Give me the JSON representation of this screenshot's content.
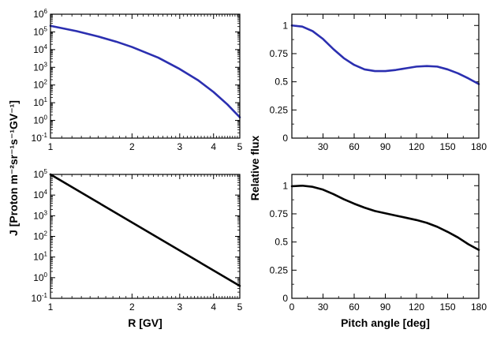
{
  "figure": {
    "shared_ylabel_left": "J [Proton m⁻²sr⁻¹s⁻¹GV⁻¹]",
    "shared_ylabel_right": "Relative flux"
  },
  "chart_data": [
    {
      "type": "line",
      "panel": "top-left",
      "xlabel": "",
      "ylabel": "J [Proton m⁻²sr⁻¹s⁻¹GV⁻¹]",
      "xscale": "log",
      "yscale": "log",
      "xlim": [
        1,
        5
      ],
      "ylim": [
        0.1,
        1000000
      ],
      "xticks": [
        1,
        2,
        3,
        4,
        5
      ],
      "xtick_labels": [
        "1",
        "2",
        "3",
        "4",
        "5"
      ],
      "yticks": [
        0.1,
        1,
        10,
        100,
        1000,
        10000,
        100000,
        1000000
      ],
      "ytick_labels": [
        [
          "10",
          "-1"
        ],
        [
          "10",
          "0"
        ],
        [
          "10",
          "1"
        ],
        [
          "10",
          "2"
        ],
        [
          "10",
          "3"
        ],
        [
          "10",
          "4"
        ],
        [
          "10",
          "5"
        ],
        [
          "10",
          "6"
        ]
      ],
      "series": [
        {
          "color": "#2b2fb0",
          "x": [
            1.0,
            1.25,
            1.5,
            1.75,
            2.0,
            2.5,
            3.0,
            3.5,
            4.0,
            4.5,
            5.0
          ],
          "y": [
            220000,
            110000,
            55000,
            28000,
            14000,
            3500,
            800,
            190,
            40,
            8,
            1.5
          ]
        }
      ]
    },
    {
      "type": "line",
      "panel": "top-right",
      "xlabel": "",
      "ylabel": "Relative flux",
      "xlim": [
        0,
        180
      ],
      "ylim": [
        0,
        1.1
      ],
      "xticks": [
        30,
        60,
        90,
        120,
        150,
        180
      ],
      "xtick_labels": [
        "30",
        "60",
        "90",
        "120",
        "150",
        "180"
      ],
      "yticks": [
        0,
        0.25,
        0.5,
        0.75,
        1
      ],
      "ytick_labels": [
        "0",
        "0.25",
        "0.5",
        "0.75",
        "1"
      ],
      "series": [
        {
          "color": "#2b2fb0",
          "x": [
            0,
            10,
            20,
            30,
            40,
            50,
            60,
            70,
            80,
            90,
            100,
            110,
            120,
            130,
            140,
            150,
            160,
            170,
            180
          ],
          "y": [
            1.0,
            0.99,
            0.95,
            0.88,
            0.79,
            0.71,
            0.65,
            0.61,
            0.595,
            0.595,
            0.605,
            0.62,
            0.635,
            0.64,
            0.635,
            0.61,
            0.575,
            0.53,
            0.48
          ]
        }
      ]
    },
    {
      "type": "line",
      "panel": "bottom-left",
      "xlabel": "R [GV]",
      "ylabel": "J [Proton m⁻²sr⁻¹s⁻¹GV⁻¹]",
      "xscale": "log",
      "yscale": "log",
      "xlim": [
        1,
        5
      ],
      "ylim": [
        0.1,
        100000
      ],
      "xticks": [
        1,
        2,
        3,
        4,
        5
      ],
      "xtick_labels": [
        "1",
        "2",
        "3",
        "4",
        "5"
      ],
      "yticks": [
        0.1,
        1,
        10,
        100,
        1000,
        10000,
        100000
      ],
      "ytick_labels": [
        [
          "10",
          "-1"
        ],
        [
          "10",
          "0"
        ],
        [
          "10",
          "1"
        ],
        [
          "10",
          "2"
        ],
        [
          "10",
          "3"
        ],
        [
          "10",
          "4"
        ],
        [
          "10",
          "5"
        ]
      ],
      "series": [
        {
          "color": "#000000",
          "x": [
            1,
            5
          ],
          "y": [
            100000,
            0.4
          ]
        }
      ]
    },
    {
      "type": "line",
      "panel": "bottom-right",
      "xlabel": "Pitch angle [deg]",
      "ylabel": "Relative flux",
      "xlim": [
        0,
        180
      ],
      "ylim": [
        0,
        1.1
      ],
      "xticks": [
        0,
        30,
        60,
        90,
        120,
        150,
        180
      ],
      "xtick_labels": [
        "0",
        "30",
        "60",
        "90",
        "120",
        "150",
        "180"
      ],
      "yticks": [
        0,
        0.25,
        0.5,
        0.75,
        1
      ],
      "ytick_labels": [
        "0",
        "0.25",
        "0.5",
        "0.75",
        "1"
      ],
      "series": [
        {
          "color": "#000000",
          "x": [
            0,
            10,
            20,
            30,
            40,
            50,
            60,
            70,
            80,
            90,
            100,
            110,
            120,
            130,
            140,
            150,
            160,
            170,
            180
          ],
          "y": [
            0.995,
            1.0,
            0.99,
            0.965,
            0.925,
            0.88,
            0.84,
            0.805,
            0.775,
            0.755,
            0.735,
            0.715,
            0.695,
            0.67,
            0.635,
            0.59,
            0.54,
            0.48,
            0.43
          ]
        }
      ]
    }
  ]
}
